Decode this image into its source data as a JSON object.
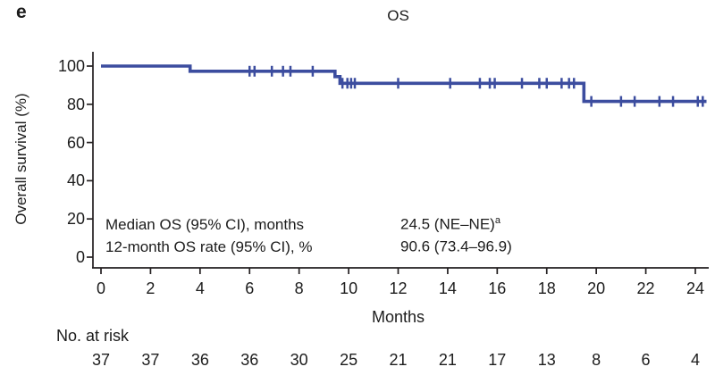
{
  "panel_label": "e",
  "title": "OS",
  "y_axis": {
    "label": "Overall survival (%)",
    "ticks": [
      0,
      20,
      40,
      60,
      80,
      100
    ]
  },
  "x_axis": {
    "label": "Months",
    "ticks": [
      0,
      2,
      4,
      6,
      8,
      10,
      12,
      14,
      16,
      18,
      20,
      22,
      24
    ]
  },
  "annotation": {
    "rows": [
      {
        "label": "Median OS (95% CI), months",
        "value": "24.5 (NE–NE)",
        "superscript": "a"
      },
      {
        "label": "12-month OS rate (95% CI), %",
        "value": "90.6 (73.4–96.9)",
        "superscript": ""
      }
    ]
  },
  "risk_table": {
    "title": "No. at risk",
    "values": [
      37,
      37,
      36,
      36,
      30,
      25,
      21,
      21,
      17,
      13,
      8,
      6,
      4
    ]
  },
  "chart_data": {
    "type": "line",
    "subtype": "kaplan-meier-step",
    "title": "OS",
    "xlabel": "Months",
    "ylabel": "Overall survival (%)",
    "xlim": [
      0,
      24.5
    ],
    "ylim": [
      0,
      100
    ],
    "grid": false,
    "legend": "none",
    "line_color": "#3c4d9f",
    "median_os_months": "24.5 (NE–NE)",
    "rate_12_month_pct": "90.6 (73.4–96.9)",
    "steps": [
      [
        0,
        100
      ],
      [
        3.6,
        100
      ],
      [
        3.6,
        97.3
      ],
      [
        9.45,
        97.3
      ],
      [
        9.45,
        94.5
      ],
      [
        9.65,
        94.5
      ],
      [
        9.65,
        91.0
      ],
      [
        19.5,
        91.0
      ],
      [
        19.5,
        81.5
      ],
      [
        24.45,
        81.5
      ]
    ],
    "censor_marks": [
      [
        6.0,
        97.3
      ],
      [
        6.2,
        97.3
      ],
      [
        6.9,
        97.3
      ],
      [
        7.35,
        97.3
      ],
      [
        7.65,
        97.3
      ],
      [
        8.55,
        97.3
      ],
      [
        9.75,
        91.0
      ],
      [
        9.95,
        91.0
      ],
      [
        10.1,
        91.0
      ],
      [
        10.25,
        91.0
      ],
      [
        12.0,
        91.0
      ],
      [
        14.1,
        91.0
      ],
      [
        15.3,
        91.0
      ],
      [
        15.7,
        91.0
      ],
      [
        15.9,
        91.0
      ],
      [
        17.0,
        91.0
      ],
      [
        17.7,
        91.0
      ],
      [
        18.0,
        91.0
      ],
      [
        18.6,
        91.0
      ],
      [
        18.9,
        91.0
      ],
      [
        19.1,
        91.0
      ],
      [
        19.8,
        81.5
      ],
      [
        21.0,
        81.5
      ],
      [
        21.55,
        81.5
      ],
      [
        22.55,
        81.5
      ],
      [
        23.1,
        81.5
      ],
      [
        24.1,
        81.5
      ],
      [
        24.3,
        81.5
      ]
    ],
    "no_at_risk": {
      "months": [
        0,
        2,
        4,
        6,
        8,
        10,
        12,
        14,
        16,
        18,
        20,
        22,
        24
      ],
      "values": [
        37,
        37,
        36,
        36,
        30,
        25,
        21,
        21,
        17,
        13,
        8,
        6,
        4
      ]
    }
  },
  "colors": {
    "curve": "#3c4d9f",
    "axis": "#231f20",
    "text": "#1c1c1c"
  }
}
